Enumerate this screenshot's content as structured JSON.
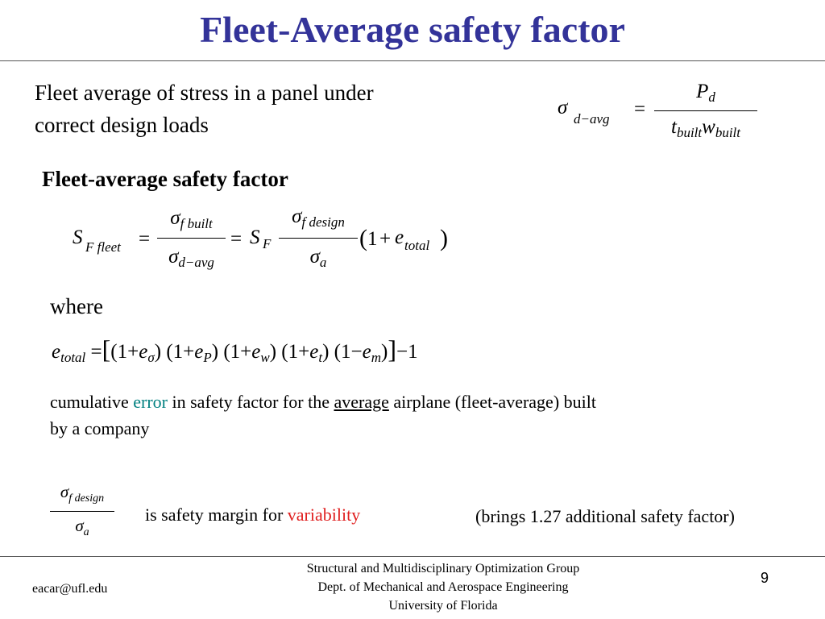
{
  "slide": {
    "title": "Fleet-Average safety factor",
    "page_number": "9"
  },
  "intro": {
    "line1": "Fleet average of stress in a panel under",
    "line2": "correct design loads"
  },
  "eq1": {
    "sigma": "σ",
    "sub": "d−avg",
    "equals": "=",
    "num": "P",
    "num_sub": "d",
    "den_t": "t",
    "den_t_sub": "built",
    "den_w": "w",
    "den_w_sub": "built"
  },
  "section": {
    "heading": "Fleet-average safety factor"
  },
  "eq2": {
    "S": "S",
    "S_sub": "F fleet",
    "eq1": "=",
    "num1_sigma": "σ",
    "num1_sub": "f built",
    "den1_sigma": "σ",
    "den1_sub": "d−avg",
    "eq2": "=",
    "SF": "S",
    "SF_sub": "F",
    "num2_sigma": "σ",
    "num2_sub": "f design",
    "den2_sigma": "σ",
    "den2_sub": "a",
    "paren_open": "(",
    "one": "1",
    "plus": "+",
    "e": "e",
    "e_sub": "total",
    "paren_close": ")"
  },
  "where": {
    "label": "where"
  },
  "eq3": {
    "lhs": "e",
    "lhs_sub": "total",
    "equals": "=",
    "lbracket": "[",
    "t1": "(1+",
    "t1e": "e",
    "t1sub": "σ",
    "t1c": ")",
    "t2": "(1+",
    "t2e": "e",
    "t2sub": "P",
    "t2c": ")",
    "t3": "(1+",
    "t3e": "e",
    "t3sub": "w",
    "t3c": ")",
    "t4": "(1+",
    "t4e": "e",
    "t4sub": "t",
    "t4c": ")",
    "t5": "(1−",
    "t5e": "e",
    "t5sub": "m",
    "t5c": ")",
    "rbracket": "]",
    "tail": "−1"
  },
  "description": {
    "part1": "cumulative ",
    "error_word": "error",
    "part2": " in safety factor for the ",
    "average_word": "average",
    "part3": " airplane (fleet-average) built",
    "line2": "by a company"
  },
  "margin": {
    "num_sigma": "σ",
    "num_sub": "f design",
    "den_sigma": "σ",
    "den_sub": "a",
    "text1": "is safety margin for ",
    "variability_word": "variability",
    "bring_note": "(brings 1.27 additional safety factor)"
  },
  "footer": {
    "email": "eacar@ufl.edu",
    "line1": "Structural and Multidisciplinary Optimization Group",
    "line2": "Dept. of Mechanical and Aerospace Engineering",
    "line3": "University of Florida"
  },
  "colors": {
    "title": "#333399",
    "error": "#008080",
    "variability": "#e02020"
  }
}
